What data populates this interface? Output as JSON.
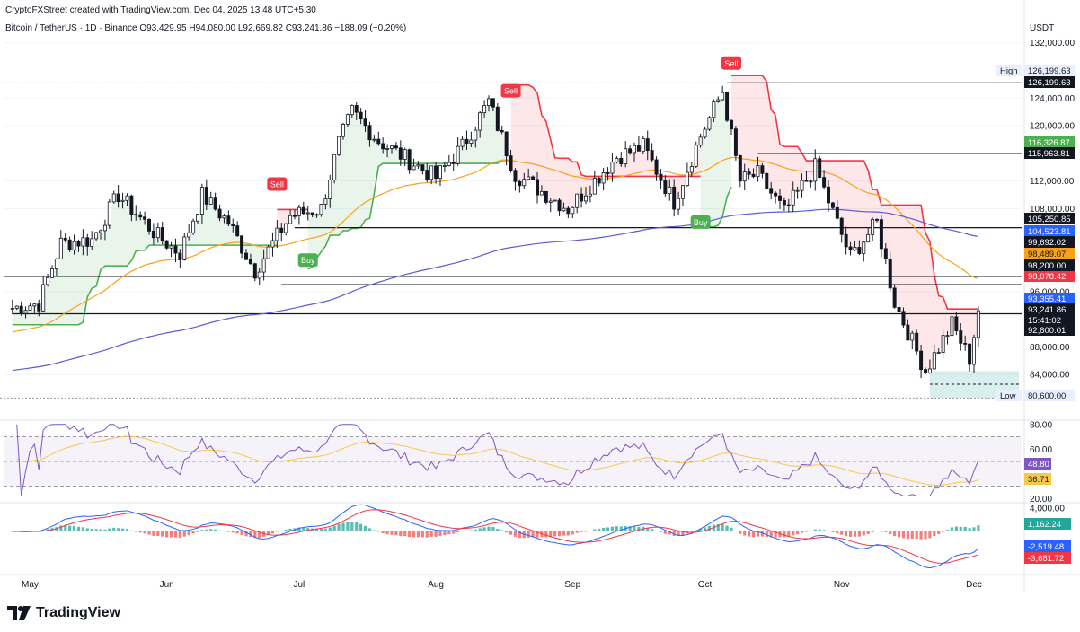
{
  "header": {
    "credit": "CryptoFXStreet created with TradingView.com, Dec 04, 2025 13:48 UTC+5:30",
    "symbol": "Bitcoin / TetherUS · 1D · Binance",
    "ohlc": "O93,429.95  H94,080.00  L92,669.82  C93,241.86  −188.09 (−0.20%)"
  },
  "price_axis_title": "USDT",
  "brand": {
    "name": "TradingView"
  },
  "colors": {
    "up": "#ffffff",
    "down": "#131722",
    "supertrend_up": "#4caf50",
    "supertrend_down": "#f23645",
    "ema50": "#f7a21b",
    "ema200": "#5b5bd6",
    "rsi": "#7e57c2",
    "rsi_ma": "#f7c948",
    "macd": "#2962ff",
    "signal": "#f23645",
    "hist_up": "#26a69a",
    "hist_down": "#ef5350"
  },
  "chart_data": [
    {
      "type": "candlestick",
      "title": "Bitcoin / TetherUS · 1D · Binance",
      "xlabel": "",
      "ylabel": "",
      "x_tick_labels": [
        "May",
        "Jun",
        "Jul",
        "Aug",
        "Sep",
        "Oct",
        "Nov",
        "Dec"
      ],
      "y_tick_labels": [
        "84,000.00",
        "88,000.00",
        "96,000.00",
        "108,000.00",
        "112,000.00",
        "120,000.00",
        "124,000.00",
        "132,000.00"
      ],
      "ylim": [
        80000,
        133000
      ],
      "approx_close_path": [
        {
          "date": "2025-04-27",
          "close": 93500
        },
        {
          "date": "2025-05-04",
          "close": 94300
        },
        {
          "date": "2025-05-09",
          "close": 103000
        },
        {
          "date": "2025-05-16",
          "close": 103500
        },
        {
          "date": "2025-05-22",
          "close": 110000
        },
        {
          "date": "2025-05-31",
          "close": 104000
        },
        {
          "date": "2025-06-05",
          "close": 101500
        },
        {
          "date": "2025-06-10",
          "close": 110000
        },
        {
          "date": "2025-06-16",
          "close": 106000
        },
        {
          "date": "2025-06-22",
          "close": 99000
        },
        {
          "date": "2025-06-30",
          "close": 107000
        },
        {
          "date": "2025-07-07",
          "close": 108000
        },
        {
          "date": "2025-07-11",
          "close": 117500
        },
        {
          "date": "2025-07-14",
          "close": 122000
        },
        {
          "date": "2025-07-20",
          "close": 117800
        },
        {
          "date": "2025-08-02",
          "close": 112500
        },
        {
          "date": "2025-08-08",
          "close": 117000
        },
        {
          "date": "2025-08-14",
          "close": 123500
        },
        {
          "date": "2025-08-20",
          "close": 113000
        },
        {
          "date": "2025-09-01",
          "close": 108000
        },
        {
          "date": "2025-09-12",
          "close": 115500
        },
        {
          "date": "2025-09-18",
          "close": 117000
        },
        {
          "date": "2025-09-25",
          "close": 109000
        },
        {
          "date": "2025-10-01",
          "close": 118500
        },
        {
          "date": "2025-10-06",
          "close": 125000
        },
        {
          "date": "2025-10-10",
          "close": 112000
        },
        {
          "date": "2025-10-14",
          "close": 113000
        },
        {
          "date": "2025-10-20",
          "close": 107500
        },
        {
          "date": "2025-10-27",
          "close": 114000
        },
        {
          "date": "2025-11-04",
          "close": 101000
        },
        {
          "date": "2025-11-10",
          "close": 106000
        },
        {
          "date": "2025-11-14",
          "close": 94500
        },
        {
          "date": "2025-11-21",
          "close": 84500
        },
        {
          "date": "2025-11-27",
          "close": 91300
        },
        {
          "date": "2025-12-01",
          "close": 86300
        },
        {
          "date": "2025-12-03",
          "close": 93241.86
        }
      ],
      "horizontal_levels": [
        {
          "price": 126199.63,
          "label": "126,199.63"
        },
        {
          "price": 115963.81,
          "label": "115,963.81"
        },
        {
          "price": 105250.85,
          "label": "105,250.85"
        },
        {
          "price": 98200.0,
          "label": "98,200.00"
        },
        {
          "price": 92800.01,
          "label": "92,800.01"
        }
      ],
      "price_labels": [
        {
          "label": "High",
          "value": "126,199.63"
        },
        {
          "label": "Supertrend",
          "value": "116,326.87"
        },
        {
          "label": "EMA 200",
          "value": "104,523.81"
        },
        {
          "label": "",
          "value": "99,692.02"
        },
        {
          "label": "EMA 50",
          "value": "98,489.07"
        },
        {
          "label": "Supertrend",
          "value": "98,078.42"
        },
        {
          "label": "",
          "value": "93,355.41"
        },
        {
          "label": "Last",
          "value": "93,241.86",
          "countdown": "15:41:02"
        },
        {
          "label": "Low",
          "value": "80,600.00"
        }
      ],
      "signals": [
        {
          "text": "Sell",
          "date": "2025-06-26"
        },
        {
          "text": "Buy",
          "date": "2025-07-03"
        },
        {
          "text": "Sell",
          "date": "2025-08-18"
        },
        {
          "text": "Buy",
          "date": "2025-09-30"
        },
        {
          "text": "Sell",
          "date": "2025-10-07"
        }
      ]
    },
    {
      "type": "line",
      "name": "RSI",
      "y_tick_labels": [
        "80.00",
        "60.00",
        "20.00"
      ],
      "ylim": [
        18,
        82
      ],
      "bands": [
        70,
        50,
        30
      ],
      "rsi_last": "48.80",
      "rsi_ma_last": "36.71"
    },
    {
      "type": "bar",
      "name": "MACD",
      "y_tick_labels": [
        "4,000.00"
      ],
      "histogram_last": "1,162.24",
      "macd_last": "-2,519.48",
      "signal_last": "-3,681.72"
    }
  ]
}
